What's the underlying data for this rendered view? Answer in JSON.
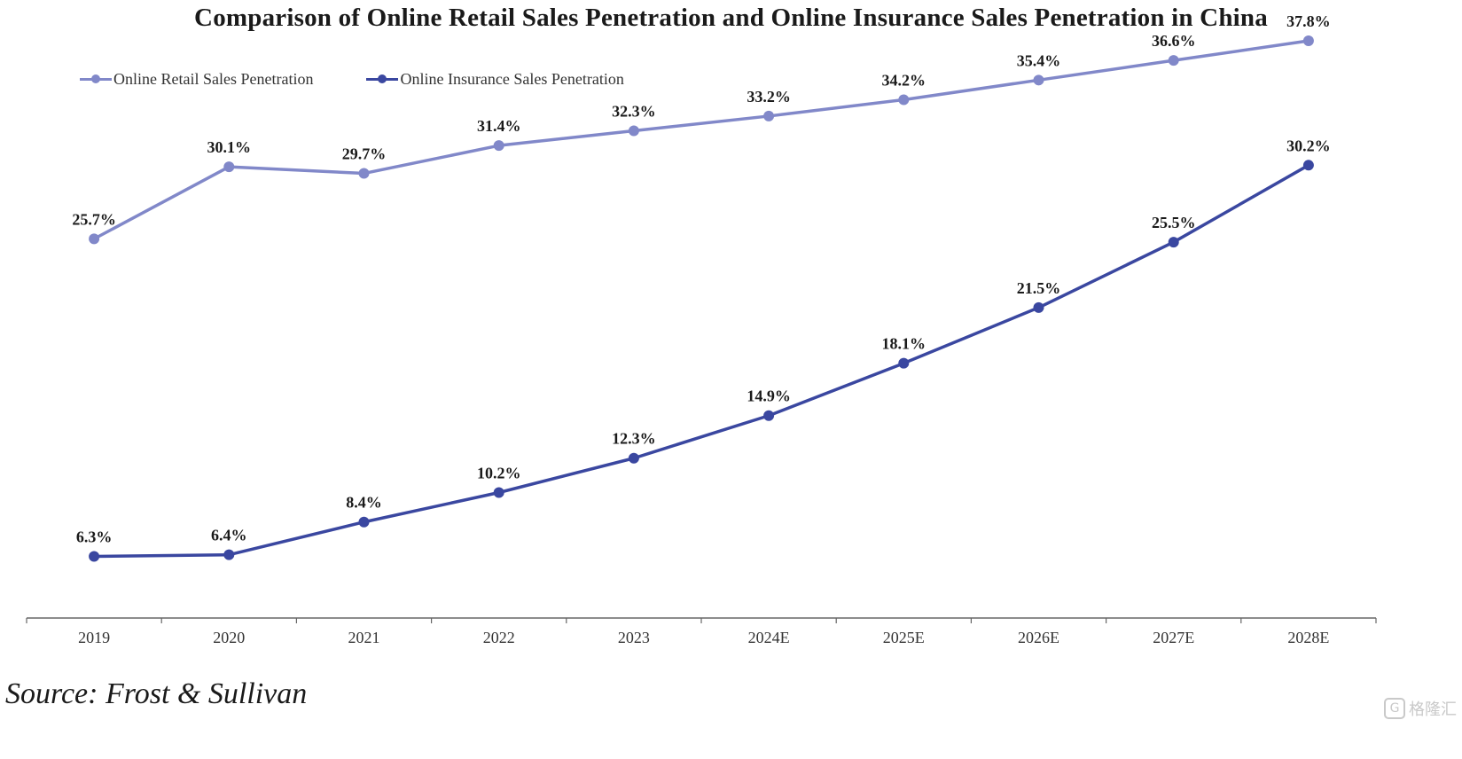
{
  "page": {
    "title": "Comparison of Online Retail Sales Penetration and Online Insurance Sales Penetration in China",
    "source": "Source: Frost & Sullivan",
    "watermark": "格隆汇"
  },
  "colors": {
    "retail": "#8188c9",
    "insurance": "#3a47a0",
    "axis": "#666666",
    "label": "#1a1a1a"
  },
  "chart_data": {
    "type": "line",
    "title": "Comparison of Online Retail Sales Penetration and Online Insurance Sales Penetration in China",
    "xlabel": "",
    "ylabel": "",
    "categories": [
      "2019",
      "2020",
      "2021",
      "2022",
      "2023",
      "2024E",
      "2025E",
      "2026E",
      "2027E",
      "2028E"
    ],
    "series": [
      {
        "name": "Online Retail Sales Penetration",
        "values": [
          25.7,
          30.1,
          29.7,
          31.4,
          32.3,
          33.2,
          34.2,
          35.4,
          36.6,
          37.8
        ],
        "labels": [
          "25.7%",
          "30.1%",
          "29.7%",
          "31.4%",
          "32.3%",
          "33.2%",
          "34.2%",
          "35.4%",
          "36.6%",
          "37.8%"
        ],
        "color": "#8188c9"
      },
      {
        "name": "Online Insurance Sales Penetration",
        "values": [
          6.3,
          6.4,
          8.4,
          10.2,
          12.3,
          14.9,
          18.1,
          21.5,
          25.5,
          30.2
        ],
        "labels": [
          "6.3%",
          "6.4%",
          "8.4%",
          "10.2%",
          "12.3%",
          "14.9%",
          "18.1%",
          "21.5%",
          "25.5%",
          "30.2%"
        ],
        "color": "#3a47a0"
      }
    ],
    "ylim": [
      0,
      45
    ],
    "grid": false,
    "legend": "top-left"
  }
}
